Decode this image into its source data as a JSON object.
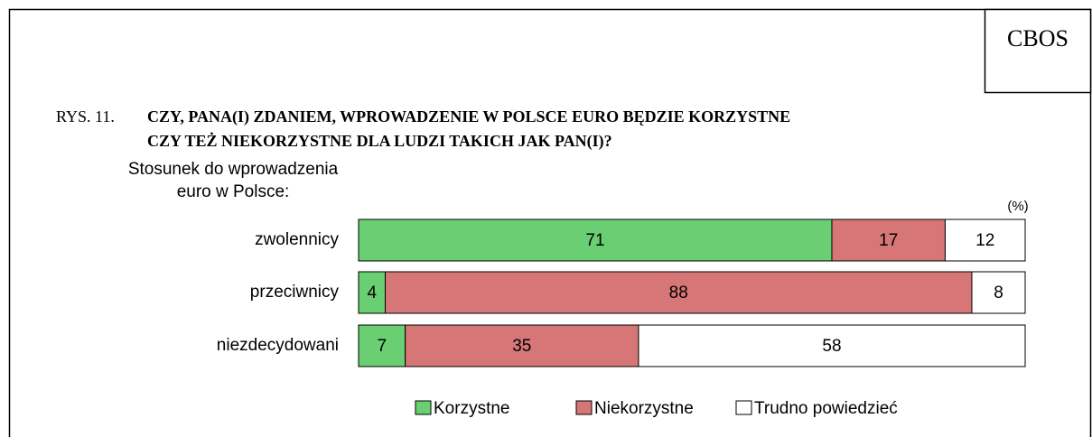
{
  "chart_data": {
    "type": "stacked_bar_horizontal",
    "source_box": "CBOS",
    "title_prefix": "RYS. 11.",
    "title_lines": [
      "CZY, PANA(I) ZDANIEM, WPROWADZENIE W POLSCE EURO BĘDZIE KORZYSTNE",
      "CZY TEŻ NIEKORZYSTNE DLA LUDZI TAKICH JAK PAN(I)?"
    ],
    "y_label_lines": [
      "Stosunek do wprowadzenia",
      "euro w Polsce:"
    ],
    "unit_label": "(%)",
    "categories": [
      "zwolennicy",
      "przeciwnicy",
      "niezdecydowani"
    ],
    "xlim": [
      0,
      100
    ],
    "series": [
      {
        "name": "Korzystne",
        "color": "#69cf72",
        "values": [
          71,
          4,
          7
        ]
      },
      {
        "name": "Niekorzystne",
        "color": "#d67676",
        "values": [
          17,
          88,
          35
        ]
      },
      {
        "name": "Trudno powiedzieć",
        "color": "#ffffff",
        "values": [
          12,
          8,
          58
        ]
      }
    ],
    "legend": "bottom"
  }
}
